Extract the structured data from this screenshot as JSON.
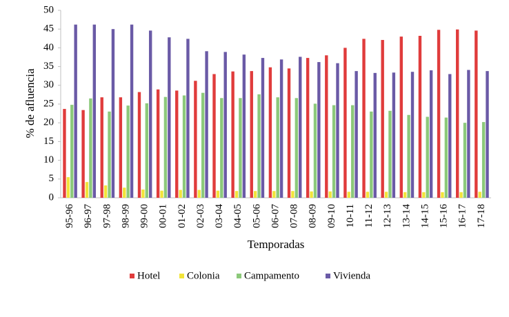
{
  "chart_data": {
    "type": "bar",
    "xlabel": "Temporadas",
    "ylabel": "% de afluencia",
    "categories": [
      "95-96",
      "96-97",
      "97-98",
      "98-99",
      "99-00",
      "00-01",
      "01-02",
      "02-03",
      "03-04",
      "04-05",
      "05-06",
      "06-07",
      "07-08",
      "08-09",
      "09-10",
      "10-11",
      "11-12",
      "12-13",
      "13-14",
      "14-15",
      "15-16",
      "16-17",
      "17-18"
    ],
    "series": [
      {
        "name": "Hotel",
        "color": "#e03c3c",
        "values": [
          23.7,
          23.4,
          26.8,
          26.8,
          28.2,
          28.9,
          28.6,
          31.2,
          33,
          33.7,
          33.8,
          34.8,
          34.5,
          37.3,
          38,
          40,
          42.4,
          42.1,
          43,
          43.2,
          44.8,
          44.9,
          44.6
        ]
      },
      {
        "name": "Colonia",
        "color": "#f2e43a",
        "values": [
          5.5,
          4.2,
          3.3,
          2.7,
          2.2,
          1.9,
          2.1,
          2.1,
          1.9,
          1.8,
          1.8,
          1.8,
          1.8,
          1.7,
          1.7,
          1.6,
          1.6,
          1.6,
          1.5,
          1.5,
          1.5,
          1.5,
          1.6
        ]
      },
      {
        "name": "Campamento",
        "color": "#8cc97a",
        "values": [
          24.8,
          26.5,
          23,
          24.6,
          25.2,
          26.9,
          27.3,
          28,
          26.6,
          26.6,
          27.6,
          26.8,
          26.6,
          25.1,
          24.7,
          24.7,
          23,
          23.2,
          22.1,
          21.6,
          21.4,
          20,
          20.2
        ]
      },
      {
        "name": "Vivienda",
        "color": "#6a5aa6",
        "values": [
          46.2,
          46.2,
          45,
          46.2,
          44.6,
          42.8,
          42.4,
          39.1,
          38.9,
          38.2,
          37.3,
          36.9,
          37.6,
          36.2,
          35.9,
          33.8,
          33.3,
          33.4,
          33.6,
          34,
          33,
          34.1,
          33.8
        ]
      }
    ],
    "ylim": [
      0,
      50
    ],
    "yticks": [
      0,
      5,
      10,
      15,
      20,
      25,
      30,
      35,
      40,
      45,
      50
    ],
    "grid": false,
    "legend": "bottom"
  }
}
